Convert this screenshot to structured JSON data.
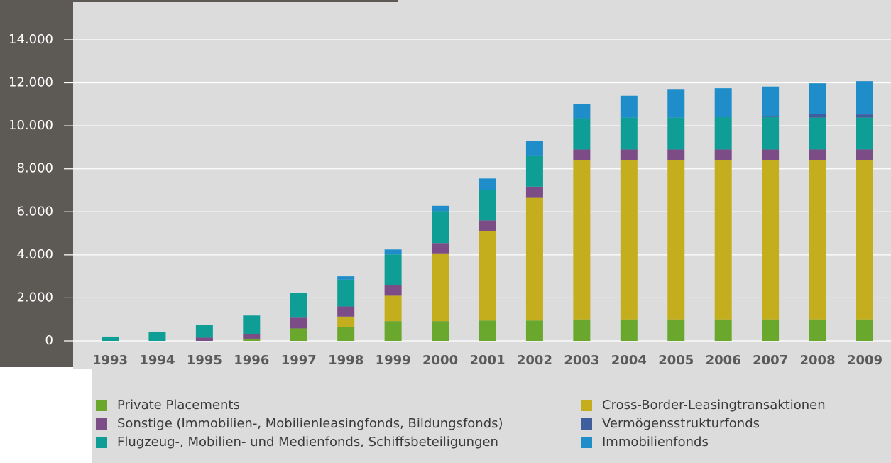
{
  "chart_data": {
    "type": "stacked-bar",
    "categories": [
      "1993",
      "1994",
      "1995",
      "1996",
      "1997",
      "1998",
      "1999",
      "2000",
      "2001",
      "2002",
      "2003",
      "2004",
      "2005",
      "2006",
      "2007",
      "2008",
      "2009"
    ],
    "series": [
      {
        "name": "Private Placements",
        "color": "#6aa72d",
        "values": [
          0,
          0,
          0,
          100,
          580,
          650,
          920,
          920,
          950,
          950,
          1000,
          1000,
          1000,
          1000,
          1000,
          1000,
          1000
        ]
      },
      {
        "name": "Cross-Border-Leasingtransaktionen",
        "color": "#c5ae1e",
        "values": [
          0,
          0,
          0,
          0,
          0,
          480,
          1180,
          3150,
          4150,
          5700,
          7420,
          7420,
          7420,
          7420,
          7420,
          7420,
          7420
        ]
      },
      {
        "name": "Sonstige (Immobilien-, Mobilienleasingfonds, Bildungsfonds)",
        "color": "#7c4c86",
        "values": [
          0,
          0,
          150,
          230,
          500,
          470,
          500,
          480,
          500,
          520,
          480,
          480,
          480,
          480,
          480,
          480,
          480
        ]
      },
      {
        "name": "Flugzeug-, Mobilien- und Medienfonds, Schiffsbeteiligungen",
        "color": "#0f9e96",
        "values": [
          200,
          430,
          580,
          850,
          1140,
          1250,
          1420,
          1480,
          1420,
          1450,
          1450,
          1480,
          1480,
          1500,
          1500,
          1480,
          1480
        ]
      },
      {
        "name": "Vermögensstrukturfonds",
        "color": "#3f5e9d",
        "values": [
          0,
          0,
          0,
          0,
          0,
          0,
          0,
          0,
          0,
          0,
          0,
          0,
          0,
          0,
          30,
          170,
          150
        ]
      },
      {
        "name": "Immobilienfonds",
        "color": "#1e8dc9",
        "values": [
          0,
          0,
          0,
          0,
          0,
          150,
          230,
          250,
          530,
          680,
          650,
          1020,
          1300,
          1350,
          1400,
          1430,
          1550
        ]
      }
    ],
    "ylim": [
      0,
      14000
    ],
    "yticks": [
      {
        "value": 0,
        "label": "0"
      },
      {
        "value": 2000,
        "label": "2.000"
      },
      {
        "value": 4000,
        "label": "4.000"
      },
      {
        "value": 6000,
        "label": "6.000"
      },
      {
        "value": 8000,
        "label": "8.000"
      },
      {
        "value": 10000,
        "label": "10.000"
      },
      {
        "value": 12000,
        "label": "12.000"
      },
      {
        "value": 14000,
        "label": "14.000"
      }
    ],
    "grid": true
  }
}
